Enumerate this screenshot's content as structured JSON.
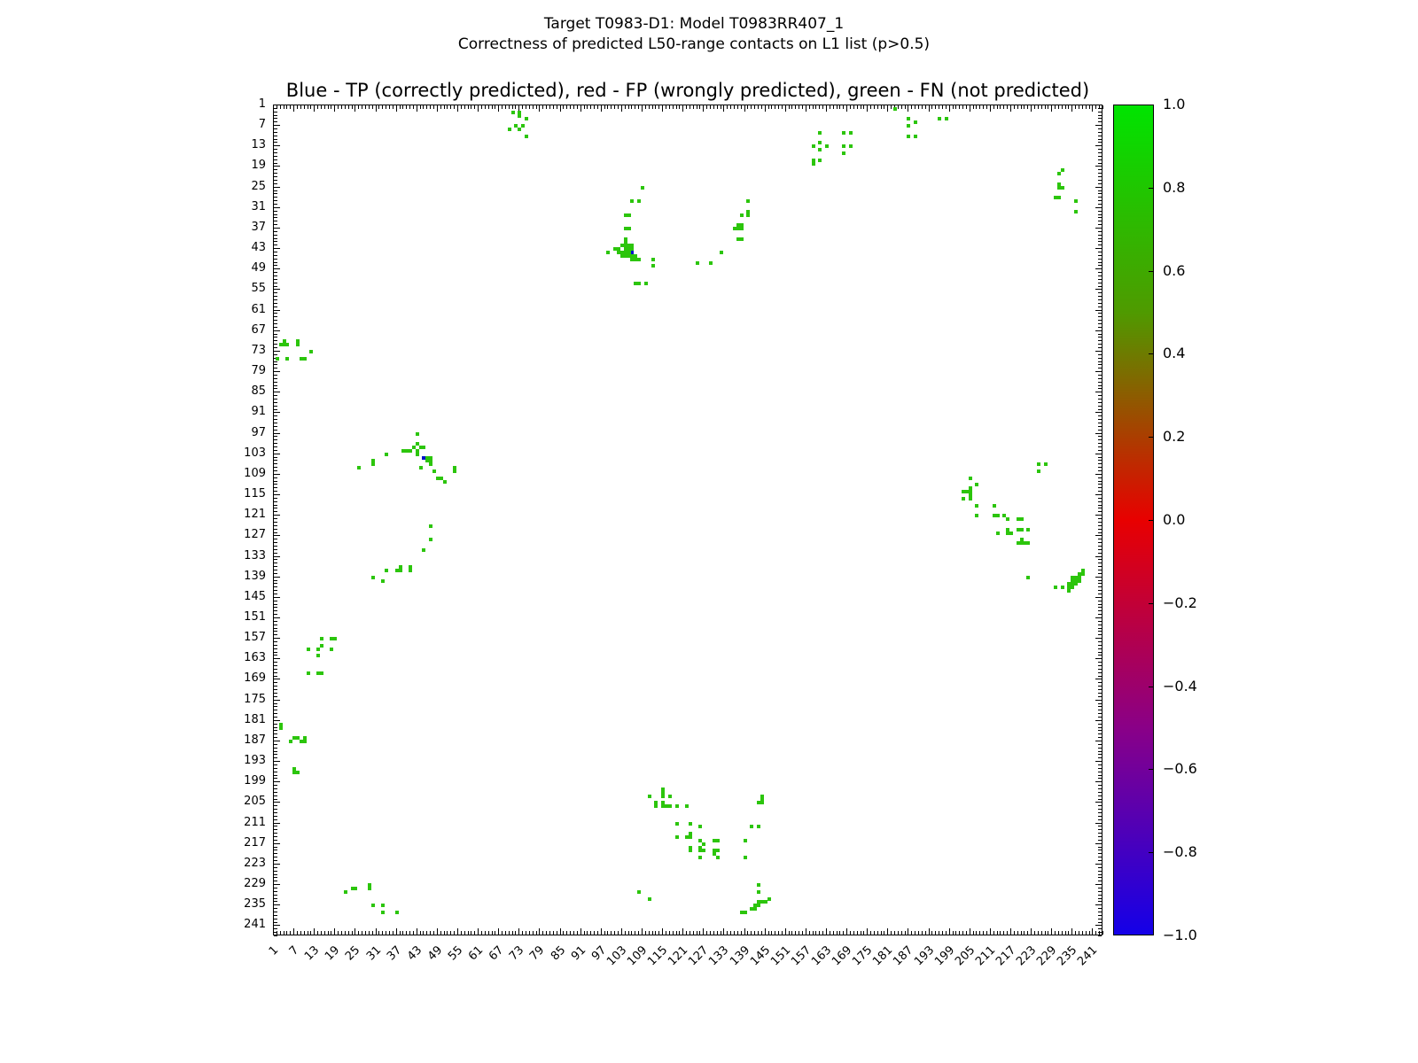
{
  "header": {
    "line1": "Target T0983-D1: Model T0983RR407_1",
    "line2": "Correctness of predicted L50-range contacts on L1 list (p>0.5)"
  },
  "chart_data": {
    "type": "scatter",
    "title": "Blue - TP (correctly predicted), red - FP (wrongly predicted), green - FN (not predicted)",
    "xlabel": "",
    "ylabel": "",
    "xlim": [
      1,
      244
    ],
    "ylim": [
      1,
      244
    ],
    "y_inverted": true,
    "grid": false,
    "ticks": {
      "start": 1,
      "step": 6,
      "end": 241,
      "minor_step": 1
    },
    "marker_size_px": 4,
    "series": [
      {
        "name": "TP (correctly predicted)",
        "color": "#0013cc",
        "points": [
          [
            106,
            44
          ],
          [
            45,
            104
          ]
        ]
      },
      {
        "name": "FP (wrongly predicted)",
        "color": "#e80000",
        "points": []
      },
      {
        "name": "FN (not predicted)",
        "color": "#2cc50c",
        "points": [
          [
            71,
            3
          ],
          [
            73,
            3
          ],
          [
            73,
            4
          ],
          [
            75,
            5
          ],
          [
            72,
            7
          ],
          [
            74,
            7
          ],
          [
            70,
            8
          ],
          [
            73,
            8
          ],
          [
            75,
            10
          ],
          [
            161,
            9
          ],
          [
            168,
            9
          ],
          [
            170,
            9
          ],
          [
            161,
            12
          ],
          [
            159,
            13
          ],
          [
            163,
            13
          ],
          [
            168,
            13
          ],
          [
            170,
            13
          ],
          [
            161,
            14
          ],
          [
            168,
            15
          ],
          [
            159,
            17
          ],
          [
            161,
            17
          ],
          [
            159,
            18
          ],
          [
            183,
            2
          ],
          [
            187,
            5
          ],
          [
            196,
            5
          ],
          [
            198,
            5
          ],
          [
            189,
            6
          ],
          [
            187,
            7
          ],
          [
            187,
            10
          ],
          [
            189,
            10
          ],
          [
            232,
            20
          ],
          [
            231,
            21
          ],
          [
            231,
            24
          ],
          [
            231,
            25
          ],
          [
            232,
            25
          ],
          [
            230,
            28
          ],
          [
            231,
            28
          ],
          [
            236,
            29
          ],
          [
            236,
            32
          ],
          [
            109,
            25
          ],
          [
            106,
            29
          ],
          [
            108,
            29
          ],
          [
            104,
            33
          ],
          [
            105,
            33
          ],
          [
            104,
            37
          ],
          [
            105,
            37
          ],
          [
            104,
            40
          ],
          [
            104,
            41
          ],
          [
            103,
            42
          ],
          [
            104,
            42
          ],
          [
            105,
            42
          ],
          [
            106,
            42
          ],
          [
            101,
            43
          ],
          [
            102,
            43
          ],
          [
            104,
            43
          ],
          [
            105,
            43
          ],
          [
            106,
            43
          ],
          [
            99,
            44
          ],
          [
            102,
            44
          ],
          [
            103,
            44
          ],
          [
            104,
            44
          ],
          [
            105,
            44
          ],
          [
            103,
            45
          ],
          [
            104,
            45
          ],
          [
            105,
            45
          ],
          [
            106,
            45
          ],
          [
            107,
            45
          ],
          [
            106,
            46
          ],
          [
            107,
            46
          ],
          [
            108,
            46
          ],
          [
            112,
            46
          ],
          [
            112,
            48
          ],
          [
            107,
            53
          ],
          [
            108,
            53
          ],
          [
            110,
            53
          ],
          [
            140,
            29
          ],
          [
            140,
            32
          ],
          [
            138,
            33
          ],
          [
            140,
            33
          ],
          [
            137,
            36
          ],
          [
            138,
            36
          ],
          [
            136,
            37
          ],
          [
            137,
            37
          ],
          [
            138,
            37
          ],
          [
            137,
            40
          ],
          [
            138,
            40
          ],
          [
            132,
            44
          ],
          [
            125,
            47
          ],
          [
            129,
            47
          ],
          [
            4,
            70
          ],
          [
            8,
            70
          ],
          [
            3,
            71
          ],
          [
            4,
            71
          ],
          [
            5,
            71
          ],
          [
            8,
            71
          ],
          [
            12,
            73
          ],
          [
            2,
            75
          ],
          [
            5,
            75
          ],
          [
            9,
            75
          ],
          [
            10,
            75
          ],
          [
            43,
            97
          ],
          [
            43,
            100
          ],
          [
            42,
            101
          ],
          [
            44,
            101
          ],
          [
            45,
            101
          ],
          [
            39,
            102
          ],
          [
            40,
            102
          ],
          [
            41,
            102
          ],
          [
            43,
            102
          ],
          [
            34,
            103
          ],
          [
            43,
            103
          ],
          [
            46,
            104
          ],
          [
            47,
            104
          ],
          [
            30,
            105
          ],
          [
            46,
            105
          ],
          [
            47,
            105
          ],
          [
            30,
            106
          ],
          [
            47,
            106
          ],
          [
            26,
            107
          ],
          [
            44,
            107
          ],
          [
            54,
            107
          ],
          [
            48,
            108
          ],
          [
            54,
            108
          ],
          [
            49,
            110
          ],
          [
            50,
            110
          ],
          [
            51,
            111
          ],
          [
            47,
            124
          ],
          [
            47,
            128
          ],
          [
            45,
            131
          ],
          [
            38,
            136
          ],
          [
            41,
            136
          ],
          [
            34,
            137
          ],
          [
            37,
            137
          ],
          [
            38,
            137
          ],
          [
            41,
            137
          ],
          [
            30,
            139
          ],
          [
            33,
            140
          ],
          [
            205,
            110
          ],
          [
            207,
            112
          ],
          [
            205,
            113
          ],
          [
            203,
            114
          ],
          [
            204,
            114
          ],
          [
            205,
            114
          ],
          [
            205,
            115
          ],
          [
            203,
            116
          ],
          [
            205,
            116
          ],
          [
            207,
            118
          ],
          [
            212,
            118
          ],
          [
            207,
            121
          ],
          [
            212,
            121
          ],
          [
            213,
            121
          ],
          [
            215,
            121
          ],
          [
            216,
            122
          ],
          [
            219,
            122
          ],
          [
            219,
            125
          ],
          [
            216,
            125
          ],
          [
            213,
            126
          ],
          [
            216,
            126
          ],
          [
            217,
            126
          ],
          [
            225,
            106
          ],
          [
            227,
            106
          ],
          [
            225,
            108
          ],
          [
            220,
            122
          ],
          [
            220,
            125
          ],
          [
            222,
            125
          ],
          [
            220,
            128
          ],
          [
            219,
            129
          ],
          [
            220,
            129
          ],
          [
            221,
            129
          ],
          [
            222,
            129
          ],
          [
            238,
            137
          ],
          [
            237,
            138
          ],
          [
            238,
            138
          ],
          [
            222,
            139
          ],
          [
            235,
            139
          ],
          [
            236,
            139
          ],
          [
            237,
            139
          ],
          [
            235,
            140
          ],
          [
            236,
            140
          ],
          [
            237,
            140
          ],
          [
            234,
            141
          ],
          [
            235,
            141
          ],
          [
            236,
            141
          ],
          [
            230,
            142
          ],
          [
            232,
            142
          ],
          [
            234,
            142
          ],
          [
            235,
            142
          ],
          [
            234,
            143
          ],
          [
            15,
            157
          ],
          [
            18,
            157
          ],
          [
            19,
            157
          ],
          [
            15,
            159
          ],
          [
            11,
            160
          ],
          [
            14,
            160
          ],
          [
            18,
            160
          ],
          [
            14,
            162
          ],
          [
            11,
            167
          ],
          [
            14,
            167
          ],
          [
            15,
            167
          ],
          [
            3,
            182
          ],
          [
            3,
            183
          ],
          [
            7,
            186
          ],
          [
            8,
            186
          ],
          [
            10,
            186
          ],
          [
            6,
            187
          ],
          [
            9,
            187
          ],
          [
            10,
            187
          ],
          [
            7,
            195
          ],
          [
            7,
            196
          ],
          [
            8,
            196
          ],
          [
            115,
            201
          ],
          [
            115,
            202
          ],
          [
            111,
            203
          ],
          [
            115,
            203
          ],
          [
            117,
            203
          ],
          [
            144,
            203
          ],
          [
            144,
            204
          ],
          [
            113,
            205
          ],
          [
            115,
            205
          ],
          [
            143,
            205
          ],
          [
            144,
            205
          ],
          [
            113,
            206
          ],
          [
            115,
            206
          ],
          [
            116,
            206
          ],
          [
            117,
            206
          ],
          [
            119,
            206
          ],
          [
            122,
            206
          ],
          [
            119,
            211
          ],
          [
            123,
            211
          ],
          [
            141,
            212
          ],
          [
            143,
            212
          ],
          [
            126,
            212
          ],
          [
            123,
            214
          ],
          [
            119,
            215
          ],
          [
            122,
            215
          ],
          [
            123,
            215
          ],
          [
            126,
            216
          ],
          [
            130,
            216
          ],
          [
            131,
            216
          ],
          [
            139,
            216
          ],
          [
            127,
            217
          ],
          [
            123,
            218
          ],
          [
            126,
            218
          ],
          [
            123,
            219
          ],
          [
            126,
            219
          ],
          [
            127,
            219
          ],
          [
            130,
            219
          ],
          [
            131,
            219
          ],
          [
            130,
            220
          ],
          [
            126,
            221
          ],
          [
            131,
            221
          ],
          [
            139,
            221
          ],
          [
            143,
            229
          ],
          [
            22,
            231
          ],
          [
            108,
            231
          ],
          [
            143,
            231
          ],
          [
            111,
            233
          ],
          [
            146,
            233
          ],
          [
            143,
            234
          ],
          [
            144,
            234
          ],
          [
            145,
            234
          ],
          [
            142,
            235
          ],
          [
            143,
            235
          ],
          [
            141,
            236
          ],
          [
            142,
            236
          ],
          [
            138,
            237
          ],
          [
            139,
            237
          ],
          [
            24,
            230
          ],
          [
            25,
            230
          ],
          [
            29,
            229
          ],
          [
            29,
            230
          ],
          [
            30,
            235
          ],
          [
            33,
            235
          ],
          [
            33,
            237
          ],
          [
            37,
            237
          ]
        ]
      }
    ],
    "colorbar": {
      "labels": [
        "1.0",
        "0.8",
        "0.6",
        "0.4",
        "0.2",
        "0.0",
        "−0.2",
        "−0.4",
        "−0.6",
        "−0.8",
        "−1.0"
      ],
      "top_color": "#00e400",
      "mid_color": "#e80000",
      "bottom_color": "#1400e8"
    }
  }
}
